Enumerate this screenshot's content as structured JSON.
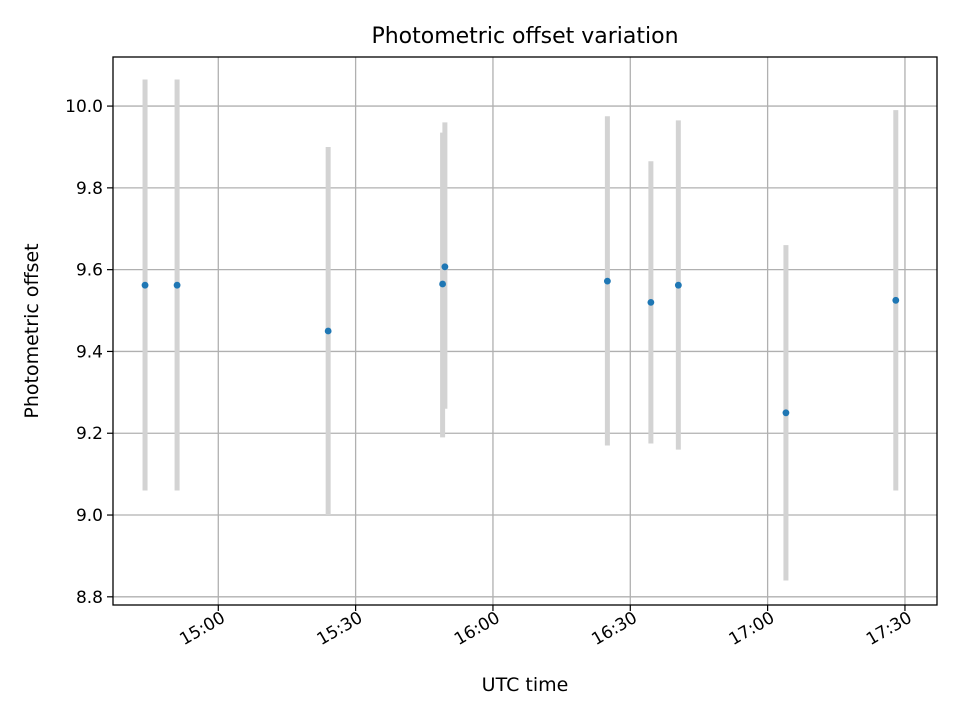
{
  "chart_data": {
    "type": "scatter",
    "title": "Photometric offset variation",
    "xlabel": "UTC time",
    "ylabel": "Photometric offset",
    "xlim": [
      "14:37",
      "17:37"
    ],
    "ylim": [
      8.78,
      10.12
    ],
    "x_ticks": [
      "15:00",
      "15:30",
      "16:00",
      "16:30",
      "17:00",
      "17:30"
    ],
    "y_ticks": [
      "8.8",
      "9.0",
      "9.2",
      "9.4",
      "9.6",
      "9.8",
      "10.0"
    ],
    "grid": true,
    "colors": {
      "point": "#1f77b4",
      "errorbar": "#d3d3d3"
    },
    "points": [
      {
        "x": "14:44",
        "y": 9.562,
        "low": 9.06,
        "high": 10.065
      },
      {
        "x": "14:51",
        "y": 9.562,
        "low": 9.06,
        "high": 10.065
      },
      {
        "x": "15:24",
        "y": 9.45,
        "low": 9.0,
        "high": 9.9
      },
      {
        "x": "15:49",
        "y": 9.565,
        "low": 9.19,
        "high": 9.935
      },
      {
        "x": "15:49.5",
        "y": 9.607,
        "low": 9.26,
        "high": 9.96
      },
      {
        "x": "16:25",
        "y": 9.572,
        "low": 9.17,
        "high": 9.975
      },
      {
        "x": "16:34.5",
        "y": 9.52,
        "low": 9.175,
        "high": 9.865
      },
      {
        "x": "16:40.5",
        "y": 9.562,
        "low": 9.16,
        "high": 9.965
      },
      {
        "x": "17:04",
        "y": 9.25,
        "low": 8.84,
        "high": 9.66
      },
      {
        "x": "17:28",
        "y": 9.525,
        "low": 9.06,
        "high": 9.99
      }
    ]
  }
}
